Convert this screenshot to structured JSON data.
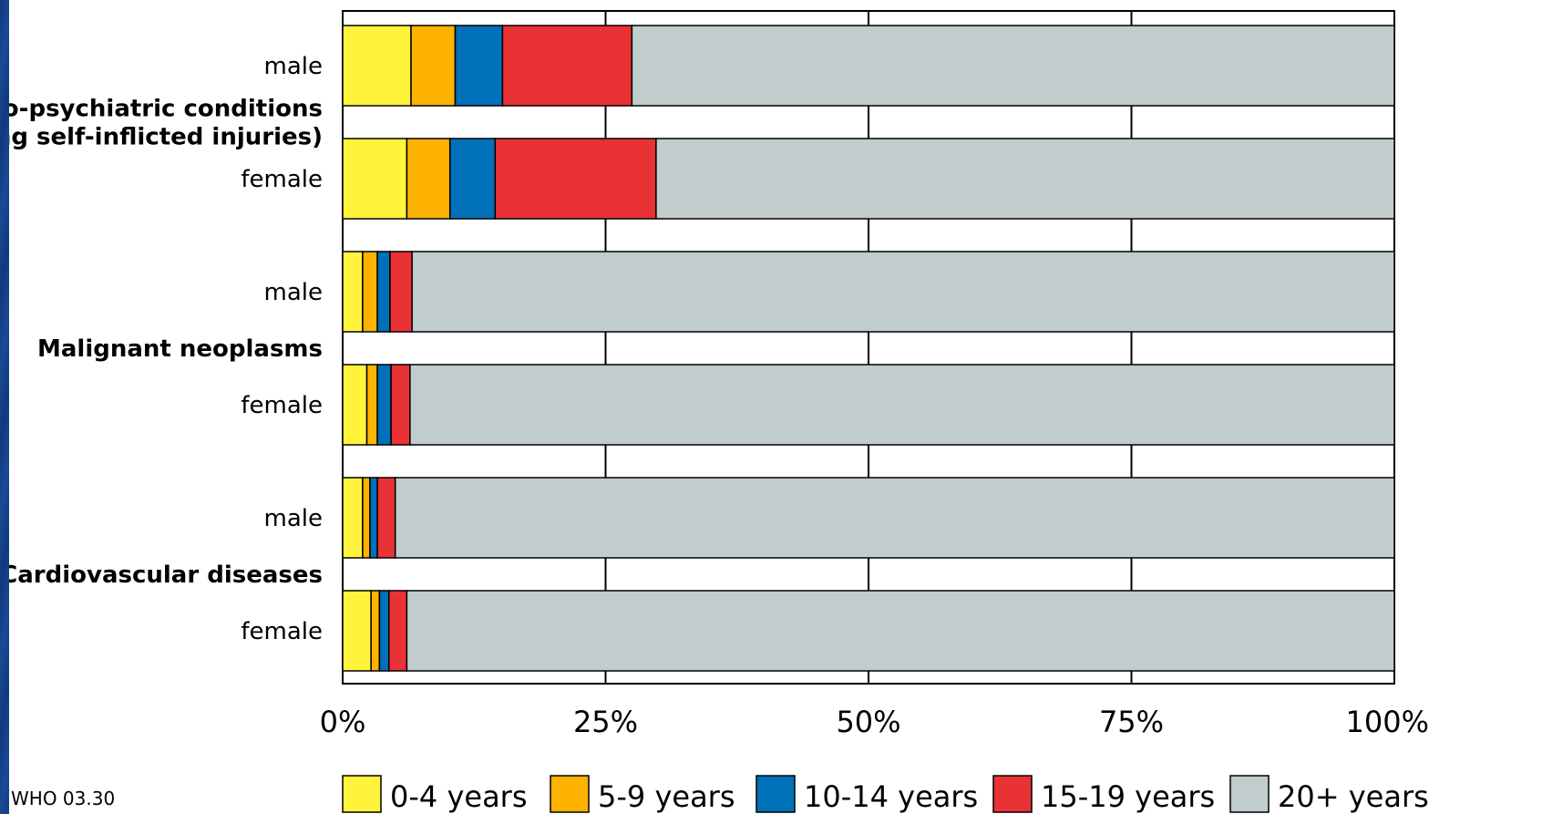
{
  "chart_data": {
    "type": "bar",
    "orientation": "horizontal",
    "stacked": true,
    "normalized": true,
    "groups": [
      {
        "name": "Neuro-psychiatric conditions\n(including self-inflicted injuries)",
        "name_lines": [
          "Neuro-psychiatric conditions",
          "(including self-inflicted injuries)"
        ],
        "rows": [
          {
            "label": "male",
            "values": [
              6.5,
              4.2,
              4.5,
              12.3,
              72.5
            ]
          },
          {
            "label": "female",
            "values": [
              6.1,
              4.1,
              4.3,
              15.3,
              70.2
            ]
          }
        ]
      },
      {
        "name": "Malignant neoplasms",
        "name_lines": [
          "Malignant neoplasms"
        ],
        "rows": [
          {
            "label": "male",
            "values": [
              1.9,
              1.4,
              1.2,
              2.1,
              93.4
            ]
          },
          {
            "label": "female",
            "values": [
              2.3,
              1.0,
              1.3,
              1.8,
              93.6
            ]
          }
        ]
      },
      {
        "name": "Cardiovascular diseases",
        "name_lines": [
          "Cardiovascular diseases"
        ],
        "rows": [
          {
            "label": "male",
            "values": [
              1.9,
              0.7,
              0.7,
              1.7,
              95.0
            ]
          },
          {
            "label": "female",
            "values": [
              2.7,
              0.8,
              0.9,
              1.7,
              93.9
            ]
          }
        ]
      }
    ],
    "series": [
      {
        "name": "0-4 years",
        "color": "#fff33b"
      },
      {
        "name": "5-9 years",
        "color": "#fdb300"
      },
      {
        "name": "10-14 years",
        "color": "#0070b8"
      },
      {
        "name": "15-19 years",
        "color": "#e93235"
      },
      {
        "name": "20+ years",
        "color": "#c0cdcc"
      }
    ],
    "xlim": [
      0,
      100
    ],
    "ticks": [
      0,
      25,
      50,
      75,
      100
    ],
    "tick_labels": [
      "0%",
      "25%",
      "50%",
      "75%",
      "100%"
    ],
    "grid": true,
    "legend": "bottom"
  },
  "footer": {
    "code": "WHO 03.30"
  }
}
